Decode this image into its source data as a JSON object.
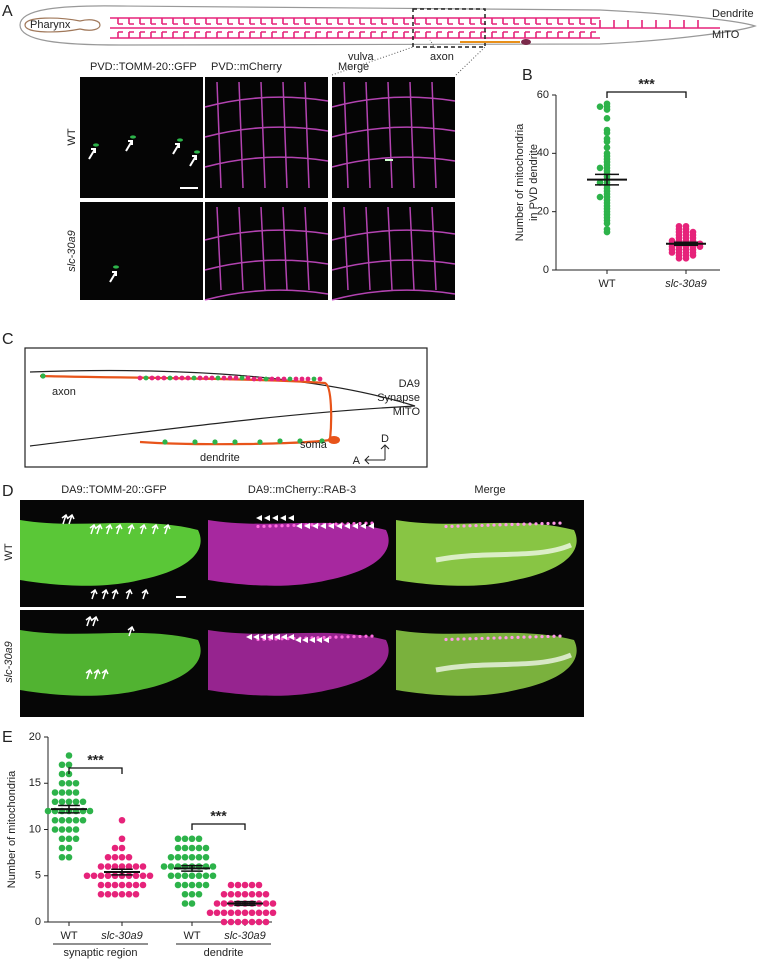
{
  "panel_labels": [
    "A",
    "B",
    "C",
    "D",
    "E"
  ],
  "panel_a": {
    "schematic": {
      "pharynx": "Pharynx",
      "dendrite": "Dendrite",
      "mito": "MITO",
      "vulva": "vulva",
      "axon": "axon"
    },
    "columns": [
      "PVD::TOMM-20::GFP",
      "PVD::mCherry",
      "Merge"
    ],
    "rows": [
      "WT",
      "slc-30a9"
    ]
  },
  "panel_c": {
    "legend": [
      "DA9",
      "Synapse",
      "MITO"
    ],
    "labels": {
      "axon": "axon",
      "soma": "soma",
      "dendrite": "dendrite",
      "dorsal": "D",
      "anterior": "A"
    }
  },
  "panel_d": {
    "columns": [
      "DA9::TOMM-20::GFP",
      "DA9::mCherry::RAB-3",
      "Merge"
    ],
    "rows": [
      "WT",
      "slc-30a9"
    ]
  },
  "chart_data": [
    {
      "type": "scatter",
      "ylabel": [
        "Number of mitochondria",
        "in PVD dendrite"
      ],
      "categories": [
        "WT",
        "slc-30a9"
      ],
      "ylim": [
        0,
        60
      ],
      "yticks": [
        0,
        20,
        40,
        60
      ],
      "significance": [
        "***"
      ],
      "groups": [
        {
          "color": "#2db34a",
          "mean": 31,
          "sem": 1.8,
          "values": [
            57,
            56,
            56,
            55,
            52,
            48,
            47,
            45,
            44,
            42,
            40,
            39,
            38,
            37,
            36,
            35,
            35,
            34,
            33,
            32,
            31,
            30,
            30,
            29,
            28,
            27,
            26,
            25,
            25,
            24,
            23,
            22,
            21,
            20,
            19,
            18,
            17,
            16,
            14,
            13
          ]
        },
        {
          "color": "#e6237a",
          "mean": 9,
          "sem": 0.5,
          "values": [
            15,
            15,
            14,
            14,
            13,
            13,
            13,
            12,
            12,
            12,
            11,
            11,
            11,
            10,
            10,
            10,
            10,
            9,
            9,
            9,
            9,
            9,
            8,
            8,
            8,
            8,
            8,
            7,
            7,
            7,
            7,
            6,
            6,
            6,
            6,
            5,
            5,
            5,
            4,
            4
          ]
        }
      ]
    },
    {
      "type": "scatter",
      "ylabel": [
        "Number of mitochondria"
      ],
      "categories": [
        "WT",
        "slc-30a9",
        "WT",
        "slc-30a9"
      ],
      "group_labels": [
        "synaptic region",
        "dendrite"
      ],
      "ylim": [
        0,
        20
      ],
      "yticks": [
        0,
        5,
        10,
        15,
        20
      ],
      "significance": [
        "***",
        "***"
      ],
      "groups": [
        {
          "color": "#2db34a",
          "mean": 12.2,
          "sem": 0.4,
          "values": [
            18,
            17,
            17,
            16,
            16,
            15,
            15,
            15,
            14,
            14,
            14,
            14,
            13,
            13,
            13,
            13,
            13,
            12,
            12,
            12,
            12,
            12,
            12,
            12,
            11,
            11,
            11,
            11,
            11,
            10,
            10,
            10,
            10,
            9,
            9,
            9,
            8,
            8,
            7,
            7
          ]
        },
        {
          "color": "#e6237a",
          "mean": 5.4,
          "sem": 0.3,
          "values": [
            11,
            9,
            8,
            8,
            7,
            7,
            7,
            7,
            6,
            6,
            6,
            6,
            6,
            6,
            6,
            5,
            5,
            5,
            5,
            5,
            5,
            5,
            5,
            5,
            5,
            4,
            4,
            4,
            4,
            4,
            4,
            4,
            3,
            3,
            3,
            3,
            3,
            3
          ]
        },
        {
          "color": "#2db34a",
          "mean": 5.8,
          "sem": 0.3,
          "values": [
            9,
            9,
            9,
            9,
            8,
            8,
            8,
            8,
            8,
            7,
            7,
            7,
            7,
            7,
            7,
            6,
            6,
            6,
            6,
            6,
            6,
            6,
            6,
            5,
            5,
            5,
            5,
            5,
            5,
            5,
            4,
            4,
            4,
            4,
            4,
            3,
            3,
            3,
            2,
            2
          ]
        },
        {
          "color": "#e6237a",
          "mean": 2.0,
          "sem": 0.2,
          "values": [
            4,
            4,
            4,
            4,
            4,
            3,
            3,
            3,
            3,
            3,
            3,
            3,
            2,
            2,
            2,
            2,
            2,
            2,
            2,
            2,
            2,
            1,
            1,
            1,
            1,
            1,
            1,
            1,
            1,
            1,
            1,
            0,
            0,
            0,
            0,
            0,
            0,
            0
          ]
        }
      ]
    }
  ]
}
